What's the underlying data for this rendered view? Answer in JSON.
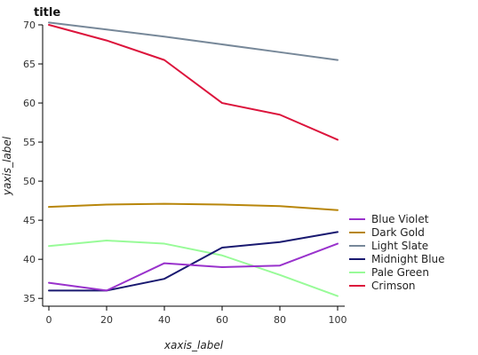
{
  "chart_data": {
    "type": "line",
    "title": "title",
    "xlabel": "xaxis_label",
    "ylabel": "yaxis_label",
    "x": [
      0,
      20,
      40,
      60,
      80,
      100
    ],
    "xticks": [
      0,
      20,
      40,
      60,
      80,
      100
    ],
    "yticks": [
      35,
      40,
      45,
      50,
      55,
      60,
      65,
      70
    ],
    "xlim": [
      0,
      100
    ],
    "ylim": [
      34,
      70
    ],
    "grid": false,
    "legend_position": "right",
    "series": [
      {
        "name": "Blue Violet",
        "color": "#9932cc",
        "values": [
          37,
          36,
          39.5,
          39,
          39.2,
          42
        ]
      },
      {
        "name": "Dark Gold",
        "color": "#b8860b",
        "values": [
          46.7,
          47,
          47.1,
          47,
          46.8,
          46.3
        ]
      },
      {
        "name": "Light Slate",
        "color": "#778899",
        "values": [
          70.3,
          69.4,
          68.5,
          67.5,
          66.5,
          65.5
        ]
      },
      {
        "name": "Midnight Blue",
        "color": "#191970",
        "values": [
          36,
          36,
          37.5,
          41.5,
          42.2,
          43.5
        ]
      },
      {
        "name": "Pale Green",
        "color": "#98fb98",
        "values": [
          41.7,
          42.4,
          42,
          40.5,
          38,
          35.3
        ]
      },
      {
        "name": "Crimson",
        "color": "#dc143c",
        "values": [
          70,
          68,
          65.5,
          60,
          58.5,
          55.3
        ]
      }
    ]
  }
}
